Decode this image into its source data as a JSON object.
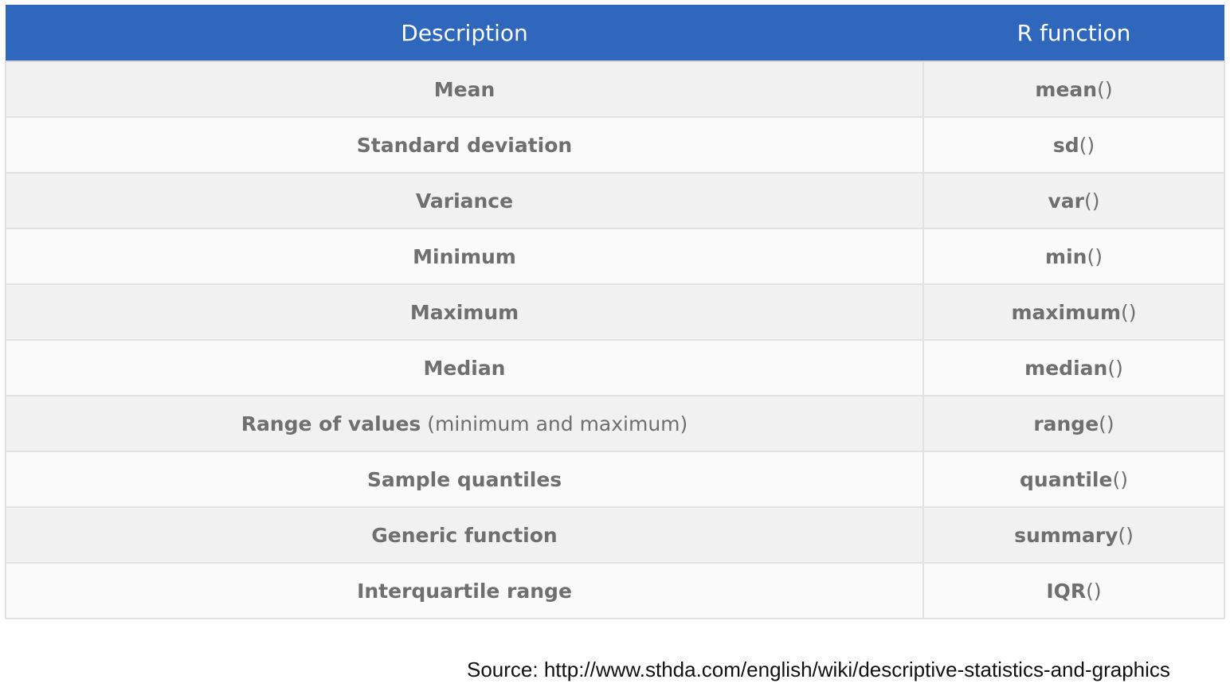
{
  "table": {
    "headers": {
      "description": "Description",
      "function": "R function"
    },
    "rows": [
      {
        "description": "Mean",
        "note": "",
        "func_name": "mean",
        "func_parens": "()"
      },
      {
        "description": "Standard deviation",
        "note": "",
        "func_name": "sd",
        "func_parens": "()"
      },
      {
        "description": "Variance",
        "note": "",
        "func_name": "var",
        "func_parens": "()"
      },
      {
        "description": "Minimum",
        "note": "",
        "func_name": "min",
        "func_parens": "()"
      },
      {
        "description": "Maximum",
        "note": "",
        "func_name": "maximum",
        "func_parens": "()"
      },
      {
        "description": "Median",
        "note": "",
        "func_name": "median",
        "func_parens": "()"
      },
      {
        "description": "Range of values",
        "note": " (minimum and maximum)",
        "func_name": "range",
        "func_parens": "()"
      },
      {
        "description": "Sample quantiles",
        "note": "",
        "func_name": "quantile",
        "func_parens": "()"
      },
      {
        "description": "Generic function",
        "note": "",
        "func_name": "summary",
        "func_parens": "()"
      },
      {
        "description": "Interquartile range",
        "note": "",
        "func_name": "IQR",
        "func_parens": "()"
      }
    ]
  },
  "source": {
    "text": "Source: http://www.sthda.com/english/wiki/descriptive-statistics-and-graphics"
  },
  "colors": {
    "header_bg": "#2e67bb",
    "header_text": "#ffffff",
    "row_odd_bg": "#f1f1f1",
    "row_even_bg": "#fafafa",
    "cell_text": "#6f6f6f"
  }
}
